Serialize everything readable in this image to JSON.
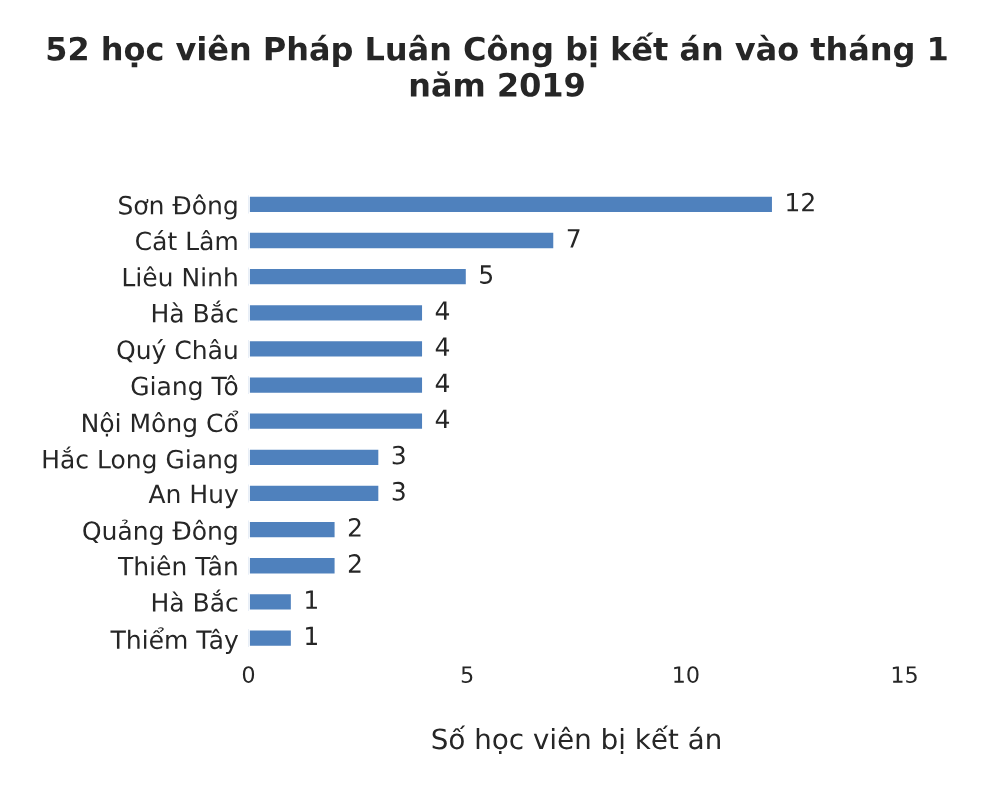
{
  "chart_data": {
    "type": "bar",
    "orientation": "horizontal",
    "title": "52 học viên Pháp Luân Công bị kết án vào tháng 1 năm 2019",
    "xlabel": "Số học viên bị kết án",
    "categories": [
      "Sơn Đông",
      "Cát Lâm",
      "Liêu Ninh",
      "Hà Bắc",
      "Quý Châu",
      "Giang Tô",
      "Nội Mông Cổ",
      "Hắc Long Giang",
      "An Huy",
      "Quảng Đông",
      "Thiên Tân",
      "Hà Bắc",
      "Thiểm Tây"
    ],
    "values": [
      12,
      7,
      5,
      4,
      4,
      4,
      4,
      3,
      3,
      2,
      2,
      1,
      1
    ],
    "color": "#4f81bd",
    "xlim": [
      0,
      15
    ],
    "xticks": [
      0,
      5,
      10,
      15
    ],
    "grid": false,
    "data_labels": true
  }
}
